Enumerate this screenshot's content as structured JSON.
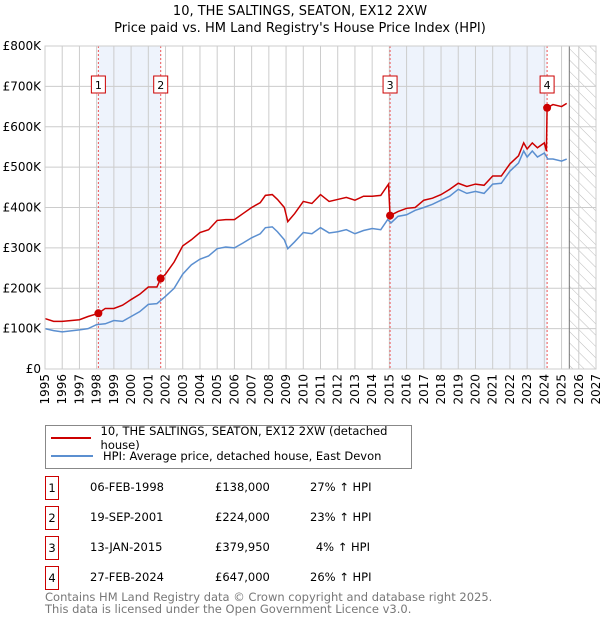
{
  "chart_data": {
    "type": "line",
    "title": "10, THE SALTINGS, SEATON, EX12 2XW",
    "subtitle": "Price paid vs. HM Land Registry's House Price Index (HPI)",
    "xlim": [
      1995,
      2027
    ],
    "ylim": [
      0,
      800000
    ],
    "x_ticks": [
      "1995",
      "1996",
      "1997",
      "1998",
      "1999",
      "2000",
      "2001",
      "2002",
      "2003",
      "2004",
      "2005",
      "2006",
      "2007",
      "2008",
      "2009",
      "2010",
      "2011",
      "2012",
      "2013",
      "2014",
      "2015",
      "2016",
      "2017",
      "2018",
      "2019",
      "2020",
      "2021",
      "2022",
      "2023",
      "2024",
      "2025",
      "2026",
      "2027"
    ],
    "y_ticks": [
      {
        "v": 0,
        "label": "£0"
      },
      {
        "v": 100000,
        "label": "£100K"
      },
      {
        "v": 200000,
        "label": "£200K"
      },
      {
        "v": 300000,
        "label": "£300K"
      },
      {
        "v": 400000,
        "label": "£400K"
      },
      {
        "v": 500000,
        "label": "£500K"
      },
      {
        "v": 600000,
        "label": "£600K"
      },
      {
        "v": 700000,
        "label": "£700K"
      },
      {
        "v": 800000,
        "label": "£800K"
      }
    ],
    "grid": true,
    "shaded_ranges": [
      [
        1998.1,
        2001.72
      ],
      [
        2015.04,
        2024.16
      ]
    ],
    "forecast_from": 2025.45,
    "series": [
      {
        "name": "10, THE SALTINGS, SEATON, EX12 2XW (detached house)",
        "color": "#cc0000",
        "x": [
          1995,
          1995.5,
          1996,
          1997,
          1997.5,
          1998.1,
          1998.5,
          1999,
          1999.5,
          2000,
          2000.5,
          2001,
          2001.5,
          2001.72,
          2002,
          2002.5,
          2003,
          2003.5,
          2004,
          2004.5,
          2005,
          2005.5,
          2006,
          2006.5,
          2007,
          2007.5,
          2007.8,
          2008.2,
          2008.5,
          2008.9,
          2009.1,
          2009.5,
          2010,
          2010.5,
          2011,
          2011.5,
          2012,
          2012.5,
          2013,
          2013.5,
          2014,
          2014.5,
          2014.95,
          2015.04,
          2015.5,
          2016,
          2016.5,
          2017,
          2017.5,
          2018,
          2018.5,
          2019,
          2019.5,
          2020,
          2020.5,
          2021,
          2021.5,
          2022,
          2022.5,
          2022.8,
          2023,
          2023.3,
          2023.6,
          2024,
          2024.12,
          2024.16,
          2024.5,
          2025,
          2025.3
        ],
        "y": [
          125,
          118,
          118,
          122,
          130,
          138,
          150,
          150,
          158,
          172,
          185,
          203,
          203,
          224,
          235,
          265,
          305,
          320,
          338,
          345,
          368,
          370,
          370,
          385,
          400,
          412,
          430,
          432,
          420,
          400,
          365,
          385,
          415,
          410,
          432,
          415,
          420,
          425,
          418,
          428,
          428,
          430,
          458,
          379.95,
          390,
          398,
          400,
          418,
          423,
          432,
          445,
          460,
          452,
          458,
          455,
          478,
          478,
          508,
          528,
          560,
          545,
          560,
          548,
          560,
          540,
          647,
          655,
          650,
          658
        ]
      },
      {
        "name": "HPI: Average price, detached house, East Devon",
        "color": "#5b8fd0",
        "x": [
          1995,
          1995.5,
          1996,
          1997,
          1997.5,
          1998,
          1998.5,
          1999,
          1999.5,
          2000,
          2000.5,
          2001,
          2001.5,
          2002,
          2002.5,
          2003,
          2003.5,
          2004,
          2004.5,
          2005,
          2005.5,
          2006,
          2006.5,
          2007,
          2007.5,
          2007.8,
          2008.2,
          2008.5,
          2008.9,
          2009.1,
          2009.5,
          2010,
          2010.5,
          2011,
          2011.5,
          2012,
          2012.5,
          2013,
          2013.5,
          2014,
          2014.5,
          2014.9,
          2015.1,
          2015.5,
          2016,
          2016.5,
          2017,
          2017.5,
          2018,
          2018.5,
          2019,
          2019.5,
          2020,
          2020.5,
          2021,
          2021.5,
          2022,
          2022.5,
          2022.8,
          2023,
          2023.3,
          2023.6,
          2024,
          2024.2,
          2024.5,
          2025,
          2025.3
        ],
        "y": [
          100,
          95,
          92,
          97,
          100,
          110,
          112,
          120,
          118,
          130,
          142,
          160,
          162,
          180,
          200,
          235,
          258,
          272,
          280,
          298,
          302,
          300,
          312,
          325,
          335,
          350,
          352,
          340,
          320,
          298,
          315,
          338,
          335,
          350,
          337,
          340,
          345,
          335,
          343,
          348,
          345,
          370,
          362,
          378,
          382,
          393,
          400,
          408,
          418,
          428,
          445,
          435,
          440,
          435,
          458,
          460,
          490,
          510,
          540,
          525,
          540,
          525,
          535,
          520,
          520,
          515,
          520
        ]
      }
    ],
    "sales": [
      {
        "n": "1",
        "x": 1998.1,
        "y": 138000,
        "date": "06-FEB-1998",
        "price": "£138,000",
        "hpi": "27% ↑ HPI"
      },
      {
        "n": "2",
        "x": 2001.72,
        "y": 224000,
        "date": "19-SEP-2001",
        "price": "£224,000",
        "hpi": "23% ↑ HPI"
      },
      {
        "n": "3",
        "x": 2015.04,
        "y": 379950,
        "date": "13-JAN-2015",
        "price": "£379,950",
        "hpi": "4% ↑ HPI"
      },
      {
        "n": "4",
        "x": 2024.16,
        "y": 647000,
        "date": "27-FEB-2024",
        "price": "£647,000",
        "hpi": "26% ↑ HPI"
      }
    ]
  },
  "legend": {
    "red": "10, THE SALTINGS, SEATON, EX12 2XW (detached house)",
    "blue": "HPI: Average price, detached house, East Devon"
  },
  "footer": {
    "line1": "Contains HM Land Registry data © Crown copyright and database right 2025.",
    "line2": "This data is licensed under the Open Government Licence v3.0."
  }
}
